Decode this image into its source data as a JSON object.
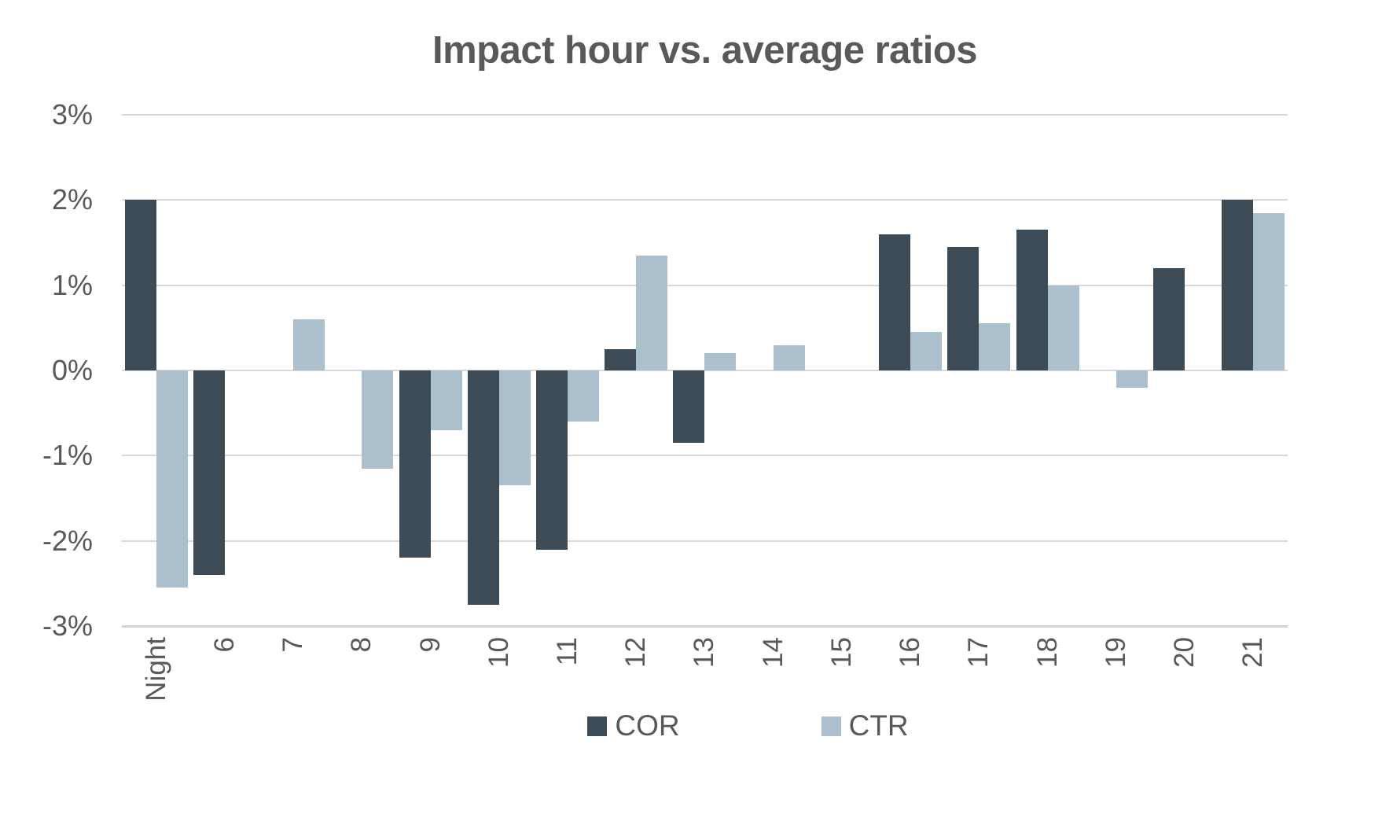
{
  "chart_data": {
    "type": "bar",
    "title": "Impact hour vs. average ratios",
    "categories": [
      "Night",
      "6",
      "7",
      "8",
      "9",
      "10",
      "11",
      "12",
      "13",
      "14",
      "15",
      "16",
      "17",
      "18",
      "19",
      "20",
      "21"
    ],
    "series": [
      {
        "name": "COR",
        "color": "#3c4b56",
        "values": [
          2.0,
          -2.4,
          0,
          0,
          -2.2,
          -2.75,
          -2.1,
          0.25,
          -0.85,
          0,
          0,
          1.6,
          1.45,
          1.65,
          0,
          1.2,
          2.0
        ]
      },
      {
        "name": "CTR",
        "color": "#abc0cc",
        "values": [
          -2.55,
          0,
          0.6,
          -1.15,
          -0.7,
          -1.35,
          -0.6,
          1.35,
          0.2,
          0.3,
          0,
          0.45,
          0.55,
          1.0,
          -0.2,
          0,
          1.85
        ]
      }
    ],
    "xlabel": "",
    "ylabel": "",
    "ylim": [
      -3,
      3
    ],
    "ytick_step": 1,
    "ytick_suffix": "%",
    "ytick_labels": [
      "3%",
      "2%",
      "1%",
      "0%",
      "-1%",
      "-2%",
      "-3%"
    ],
    "grid": true,
    "legend_position": "bottom",
    "colors": {
      "title_text": "#595959",
      "axis_text": "#595959",
      "gridline": "#d9d9d9",
      "background": "#ffffff"
    }
  }
}
